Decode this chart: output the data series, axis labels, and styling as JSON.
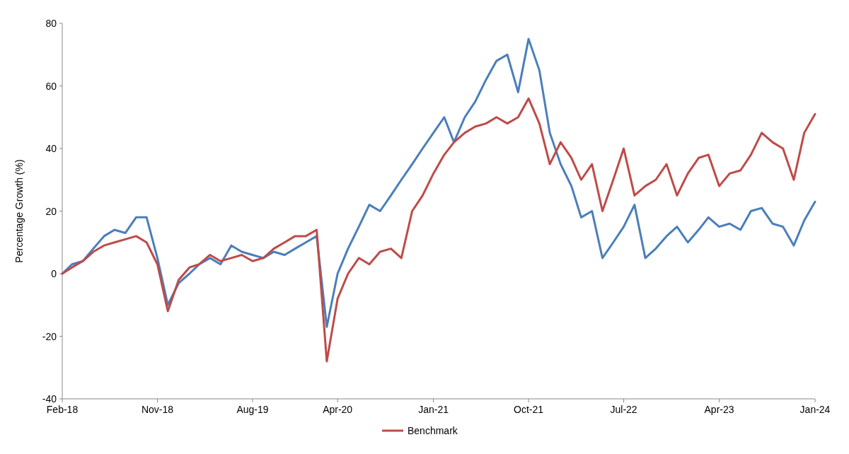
{
  "chart_data": {
    "type": "line",
    "ylabel": "Percentage Growth (%)",
    "x": [
      "2018-02",
      "2018-03",
      "2018-04",
      "2018-05",
      "2018-06",
      "2018-07",
      "2018-08",
      "2018-09",
      "2018-10",
      "2018-11",
      "2018-12",
      "2019-01",
      "2019-02",
      "2019-03",
      "2019-04",
      "2019-05",
      "2019-06",
      "2019-07",
      "2019-08",
      "2019-09",
      "2019-10",
      "2019-11",
      "2019-12",
      "2020-01",
      "2020-02",
      "2020-03",
      "2020-04",
      "2020-05",
      "2020-06",
      "2020-07",
      "2020-08",
      "2020-09",
      "2020-10",
      "2020-11",
      "2020-12",
      "2021-01",
      "2021-02",
      "2021-03",
      "2021-04",
      "2021-05",
      "2021-06",
      "2021-07",
      "2021-08",
      "2021-09",
      "2021-10",
      "2021-11",
      "2021-12",
      "2022-01",
      "2022-02",
      "2022-03",
      "2022-04",
      "2022-05",
      "2022-06",
      "2022-07",
      "2022-08",
      "2022-09",
      "2022-10",
      "2022-11",
      "2022-12",
      "2023-01",
      "2023-02",
      "2023-03",
      "2023-04",
      "2023-05",
      "2023-06",
      "2023-07",
      "2023-08",
      "2023-09",
      "2023-10",
      "2023-11",
      "2023-12",
      "2024-01"
    ],
    "series": [
      {
        "color": "#4a7ebb",
        "values": [
          0,
          3,
          4,
          8,
          12,
          14,
          13,
          18,
          18,
          5,
          -10,
          -3,
          0,
          3,
          5,
          3,
          9,
          7,
          6,
          5,
          7,
          6,
          8,
          10,
          12,
          -17,
          0,
          8,
          15,
          22,
          20,
          25,
          30,
          35,
          40,
          45,
          50,
          42,
          50,
          55,
          62,
          68,
          70,
          58,
          75,
          65,
          45,
          35,
          28,
          18,
          20,
          5,
          10,
          15,
          22,
          5,
          8,
          12,
          15,
          10,
          14,
          18,
          15,
          16,
          14,
          20,
          21,
          16,
          15,
          9,
          17,
          23
        ]
      },
      {
        "name": "Benchmark",
        "color": "#be4b48",
        "values": [
          0,
          2,
          4,
          7,
          9,
          10,
          11,
          12,
          10,
          3,
          -12,
          -2,
          2,
          3,
          6,
          4,
          5,
          6,
          4,
          5,
          8,
          10,
          12,
          12,
          14,
          -28,
          -8,
          0,
          5,
          3,
          7,
          8,
          5,
          20,
          25,
          32,
          38,
          42,
          45,
          47,
          48,
          50,
          48,
          50,
          56,
          48,
          35,
          42,
          37,
          30,
          35,
          20,
          30,
          40,
          25,
          28,
          30,
          35,
          25,
          32,
          37,
          38,
          28,
          32,
          33,
          38,
          45,
          42,
          40,
          30,
          45,
          51
        ]
      }
    ],
    "xlim": [
      "2018-02",
      "2024-01"
    ],
    "xticks": [
      {
        "value": "2018-02",
        "label": "Feb-18"
      },
      {
        "value": "2018-11",
        "label": "Nov-18"
      },
      {
        "value": "2019-08",
        "label": "Aug-19"
      },
      {
        "value": "2020-04",
        "label": "Apr-20"
      },
      {
        "value": "2021-01",
        "label": "Jan-21"
      },
      {
        "value": "2021-10",
        "label": "Oct-21"
      },
      {
        "value": "2022-07",
        "label": "Jul-22"
      },
      {
        "value": "2023-04",
        "label": "Apr-23"
      },
      {
        "value": "2024-01",
        "label": "Jan-24"
      }
    ],
    "ylim": [
      -40,
      80
    ],
    "yticks": [
      -40,
      -20,
      0,
      20,
      40,
      60,
      80
    ],
    "legend": "bottom"
  }
}
